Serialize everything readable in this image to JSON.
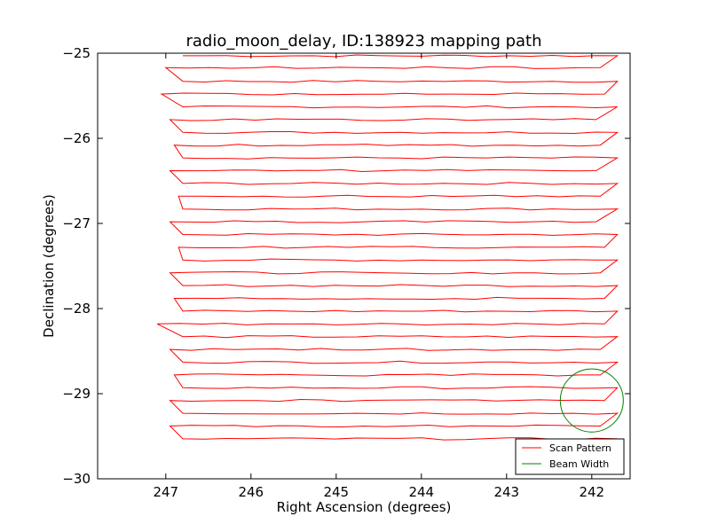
{
  "chart_data": {
    "type": "line",
    "title": "radio_moon_delay, ID:138923 mapping path",
    "xlabel": "Right Ascension (degrees)",
    "ylabel": "Declination (degrees)",
    "xlim": [
      247.8,
      241.55
    ],
    "ylim": [
      -30,
      -25
    ],
    "x_inverted": true,
    "grid": false,
    "xticks": [
      247,
      246,
      245,
      244,
      243,
      242
    ],
    "xtick_labels": [
      "247",
      "246",
      "245",
      "244",
      "243",
      "242"
    ],
    "yticks": [
      -25,
      -26,
      -27,
      -28,
      -29,
      -30
    ],
    "ytick_labels": [
      "−25",
      "−26",
      "−27",
      "−28",
      "−29",
      "−30"
    ],
    "legend_position": "lower-right",
    "series": [
      {
        "name": "Scan Pattern",
        "color": "#ff0000",
        "kind": "raster-scan",
        "ra_west_edge": 241.7,
        "ra_east_edge": 247.0,
        "dec_rows": [
          -25.03,
          -25.17,
          -25.33,
          -25.48,
          -25.63,
          -25.78,
          -25.93,
          -26.08,
          -26.23,
          -26.38,
          -26.53,
          -26.68,
          -26.83,
          -26.98,
          -27.13,
          -27.28,
          -27.43,
          -27.58,
          -27.73,
          -27.88,
          -28.03,
          -28.18,
          -28.33,
          -28.48,
          -28.63,
          -28.78,
          -28.93,
          -29.08,
          -29.23,
          -29.38,
          -29.53
        ],
        "turn_ra_east": [
          246.8,
          247.0,
          246.8,
          247.05,
          246.8,
          246.95,
          246.8,
          246.9,
          246.8,
          246.95,
          246.8,
          246.85,
          246.8,
          246.95,
          246.8,
          246.85,
          246.8,
          246.95,
          246.8,
          246.9,
          246.8,
          247.1,
          246.8,
          246.95,
          246.8,
          246.9,
          246.8,
          246.95,
          246.8,
          246.95,
          246.8
        ],
        "turn_ra_west": [
          241.7,
          241.9,
          241.7,
          241.85,
          241.7,
          241.95,
          241.7,
          241.9,
          241.7,
          241.95,
          241.7,
          241.9,
          241.7,
          241.95,
          241.7,
          241.85,
          241.7,
          241.9,
          241.7,
          241.85,
          241.7,
          241.85,
          241.7,
          241.9,
          241.7,
          241.9,
          241.7,
          241.85,
          241.7,
          241.9,
          241.7
        ]
      },
      {
        "name": "Beam Width",
        "color": "#008000",
        "kind": "circle",
        "center": [
          242.0,
          -29.08
        ],
        "radius_dec": 0.37
      }
    ]
  }
}
